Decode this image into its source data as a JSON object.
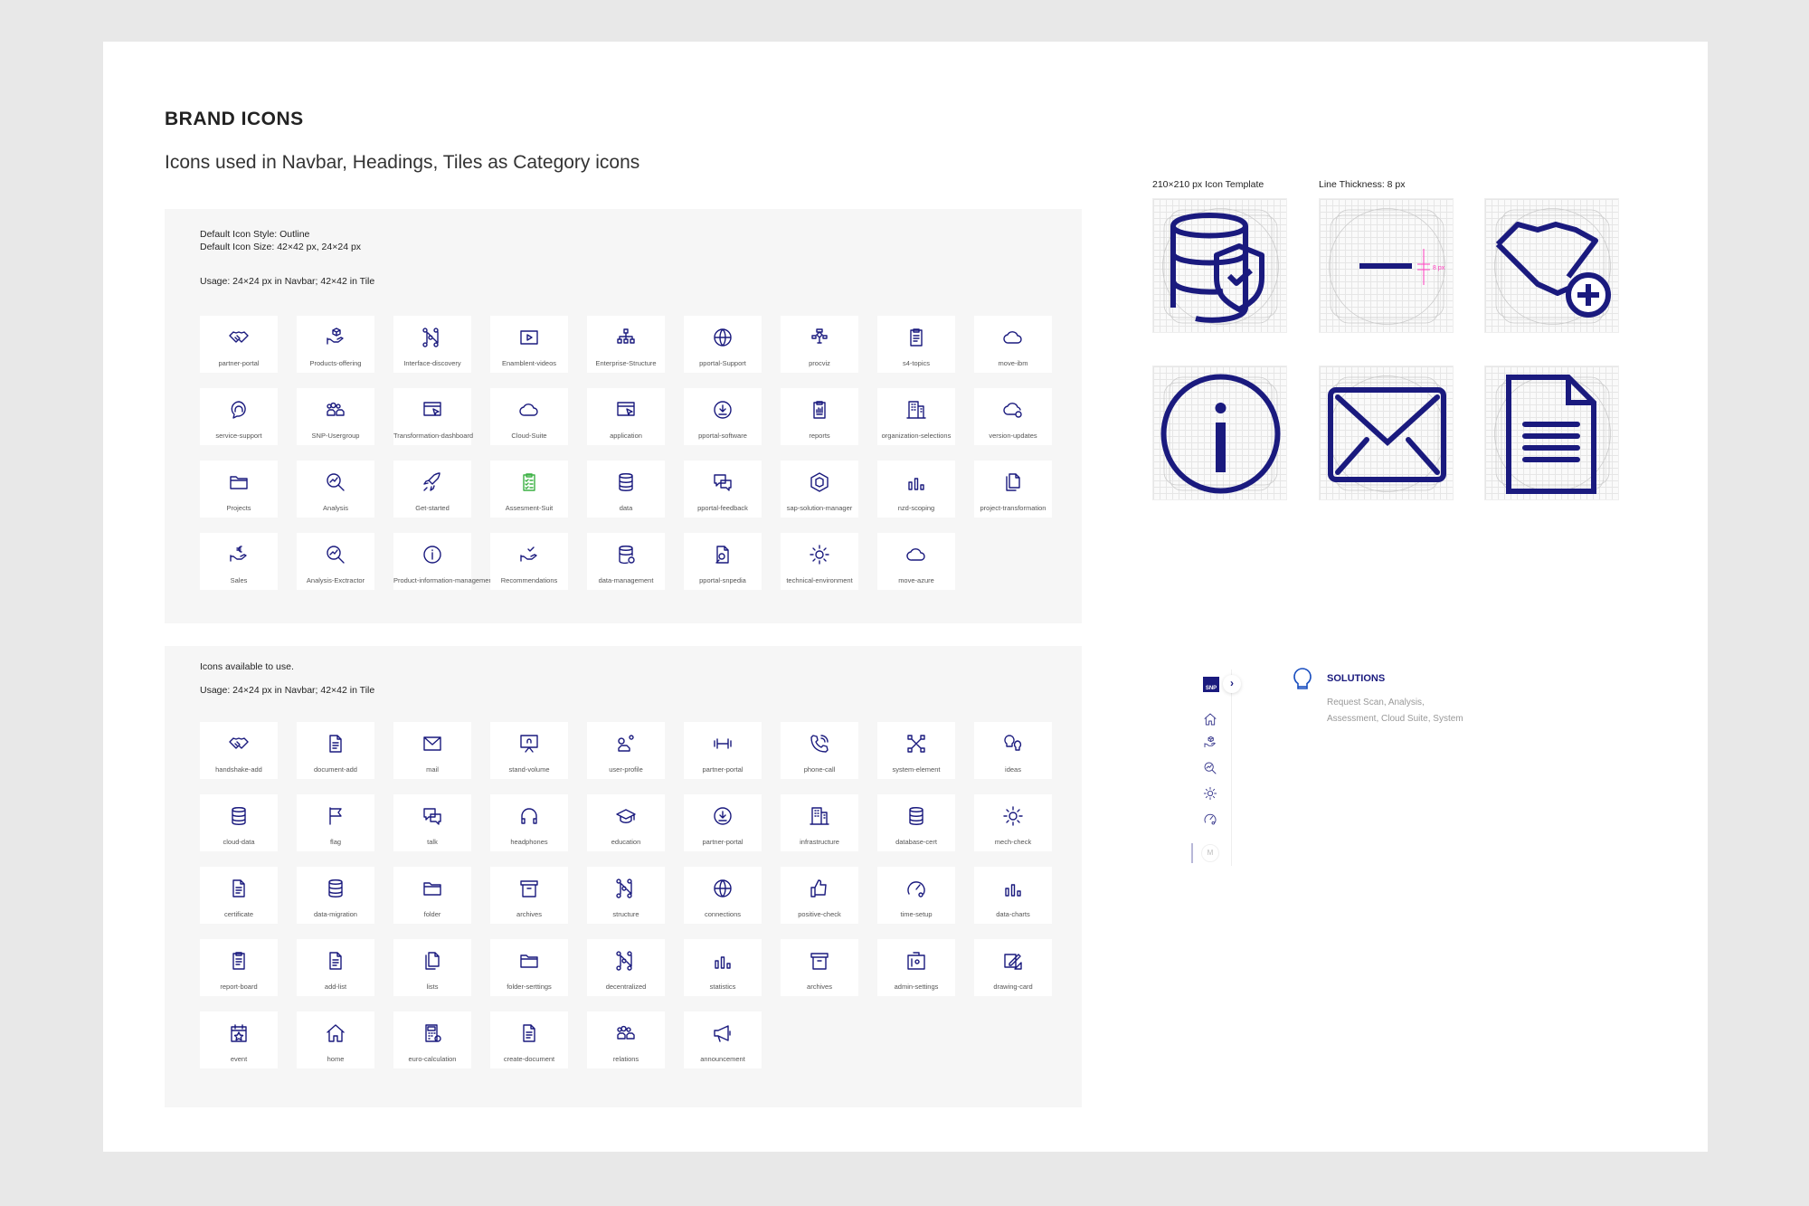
{
  "header": {
    "title": "BRAND ICONS",
    "subtitle": "Icons used in Navbar, Headings, Tiles as Category icons"
  },
  "colors": {
    "icon": "#1a1a7e",
    "accent_green": "#3cb043",
    "guide_magenta": "#ff3fbf",
    "panel_bg": "#f6f6f6"
  },
  "brand_panel": {
    "style_note": "Default Icon Style: Outline",
    "size_note": "Default Icon Size: 42×42 px, 24×24 px",
    "usage_note": "Usage: 24×24 px in Navbar; 42×42 in Tile",
    "icons": [
      {
        "label": "partner-portal",
        "icon": "handshake"
      },
      {
        "label": "Products-offering",
        "icon": "hand-box"
      },
      {
        "label": "Interface-discovery",
        "icon": "nodes"
      },
      {
        "label": "Enamblent-videos",
        "icon": "play"
      },
      {
        "label": "Enterprise-Structure",
        "icon": "tree"
      },
      {
        "label": "pportal-Support",
        "icon": "globe"
      },
      {
        "label": "procviz",
        "icon": "flow"
      },
      {
        "label": "s4-topics",
        "icon": "clipboard"
      },
      {
        "label": "move-ibm",
        "icon": "cloud"
      },
      {
        "label": "service-support",
        "icon": "headset"
      },
      {
        "label": "SNP-Usergroup",
        "icon": "people"
      },
      {
        "label": "Transformation-dashboard",
        "icon": "window"
      },
      {
        "label": "Cloud-Suite",
        "icon": "cloud"
      },
      {
        "label": "application",
        "icon": "window"
      },
      {
        "label": "pportal-software",
        "icon": "download"
      },
      {
        "label": "reports",
        "icon": "clipboard-chart"
      },
      {
        "label": "organization-selections",
        "icon": "building"
      },
      {
        "label": "version-updates",
        "icon": "cloud-gear"
      },
      {
        "label": "Projects",
        "icon": "folder"
      },
      {
        "label": "Analysis",
        "icon": "magnifier"
      },
      {
        "label": "Get-started",
        "icon": "rocket"
      },
      {
        "label": "Assesment-Suit",
        "icon": "checklist",
        "green": true
      },
      {
        "label": "data",
        "icon": "database"
      },
      {
        "label": "pportal-feedback",
        "icon": "chat"
      },
      {
        "label": "sap-solution-manager",
        "icon": "hexagon"
      },
      {
        "label": "nzd-scoping",
        "icon": "bars"
      },
      {
        "label": "project-transformation",
        "icon": "docs"
      },
      {
        "label": "Sales",
        "icon": "hand-euro"
      },
      {
        "label": "Analysis-Exctractor",
        "icon": "magnifier"
      },
      {
        "label": "Product-information-managements",
        "icon": "info"
      },
      {
        "label": "Recommendations",
        "icon": "hand-check"
      },
      {
        "label": "data-management",
        "icon": "database-gear"
      },
      {
        "label": "pportal-snpedia",
        "icon": "doc-search"
      },
      {
        "label": "technical-environment",
        "icon": "gear"
      },
      {
        "label": "move-azure",
        "icon": "cloud"
      }
    ]
  },
  "available_panel": {
    "intro_note": "Icons available to use.",
    "usage_note": "Usage: 24×24 px in Navbar; 42×42 in Tile",
    "icons": [
      {
        "label": "handshake-add",
        "icon": "handshake"
      },
      {
        "label": "document-add",
        "icon": "doc"
      },
      {
        "label": "mail",
        "icon": "mail"
      },
      {
        "label": "stand-volume",
        "icon": "screen"
      },
      {
        "label": "user-profile",
        "icon": "user"
      },
      {
        "label": "partner-portal",
        "icon": "dumbbell"
      },
      {
        "label": "phone-call",
        "icon": "phone"
      },
      {
        "label": "system-element",
        "icon": "network"
      },
      {
        "label": "ideas",
        "icon": "bulb"
      },
      {
        "label": "cloud-data",
        "icon": "database"
      },
      {
        "label": "flag",
        "icon": "flag"
      },
      {
        "label": "talk",
        "icon": "chat"
      },
      {
        "label": "headphones",
        "icon": "headphones"
      },
      {
        "label": "education",
        "icon": "cap"
      },
      {
        "label": "partner-portal",
        "icon": "download"
      },
      {
        "label": "infrastructure",
        "icon": "building"
      },
      {
        "label": "database-cert",
        "icon": "database"
      },
      {
        "label": "mech-check",
        "icon": "gear"
      },
      {
        "label": "certificate",
        "icon": "doc"
      },
      {
        "label": "data-migration",
        "icon": "database"
      },
      {
        "label": "folder",
        "icon": "folder"
      },
      {
        "label": "archives",
        "icon": "box"
      },
      {
        "label": "structure",
        "icon": "nodes"
      },
      {
        "label": "connections",
        "icon": "globe"
      },
      {
        "label": "positive-check",
        "icon": "thumb"
      },
      {
        "label": "time-setup",
        "icon": "gauge"
      },
      {
        "label": "data-charts",
        "icon": "bars"
      },
      {
        "label": "report-board",
        "icon": "clipboard"
      },
      {
        "label": "add-list",
        "icon": "doc"
      },
      {
        "label": "lists",
        "icon": "docs"
      },
      {
        "label": "folder-serttings",
        "icon": "folder"
      },
      {
        "label": "decentralized",
        "icon": "nodes"
      },
      {
        "label": "statistics",
        "icon": "bars"
      },
      {
        "label": "archives",
        "icon": "box"
      },
      {
        "label": "admin-settings",
        "icon": "toolbox"
      },
      {
        "label": "drawing-card",
        "icon": "pencil"
      },
      {
        "label": "event",
        "icon": "calendar"
      },
      {
        "label": "home",
        "icon": "home"
      },
      {
        "label": "euro-calculation",
        "icon": "calculator"
      },
      {
        "label": "create-document",
        "icon": "doc"
      },
      {
        "label": "relations",
        "icon": "people"
      },
      {
        "label": "announcement",
        "icon": "megaphone"
      }
    ]
  },
  "templates": {
    "template_label": "210×210 px Icon Template",
    "thickness_label": "Line Thickness: 8 px",
    "thickness_marker": "8 px",
    "items": [
      {
        "icon": "database-shield"
      },
      {
        "icon": "line-thickness"
      },
      {
        "icon": "handshake-add"
      },
      {
        "icon": "info"
      },
      {
        "icon": "mail"
      },
      {
        "icon": "document"
      }
    ]
  },
  "nav_preview": {
    "logo": "SNP",
    "expand_icon": "chevron-right",
    "nav_icons": [
      "home",
      "hand-box",
      "magnifier",
      "gear",
      "gauge"
    ],
    "user_initial": "M",
    "solutions_title": "SOLUTIONS",
    "solutions_line1": "Request Scan, Analysis,",
    "solutions_line2": "Assessment, Cloud Suite, System"
  }
}
